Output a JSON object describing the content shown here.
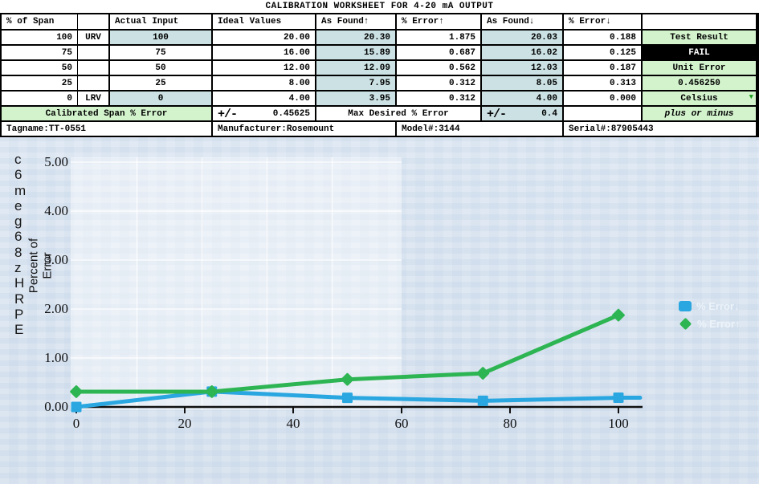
{
  "colors": {
    "band_cyan": "#5ef5ee",
    "cell_teal": "#cbe1e3",
    "cell_green": "#d3f3cd",
    "fail_bg": "#000000",
    "series_blue": "#2aa7e0",
    "series_green": "#2eb553",
    "dropdown_green": "#1f9e1f"
  },
  "worksheet": {
    "title": "CALIBRATION WORKSHEET FOR 4-20 mA OUTPUT",
    "columns": [
      "% of Span",
      "",
      "Actual Input",
      "Ideal Values",
      "As Found↑",
      "% Error↑",
      "As Found↓",
      "% Error↓",
      ""
    ],
    "rows": [
      {
        "span": "100",
        "tag": "URV",
        "input": "100",
        "ideal": "20.00",
        "af_up": "20.30",
        "err_up": "1.875",
        "af_dn": "20.03",
        "err_dn": "0.188",
        "result": "Test Result",
        "result_style": "green"
      },
      {
        "span": "75",
        "tag": "",
        "input": "75",
        "ideal": "16.00",
        "af_up": "15.89",
        "err_up": "0.687",
        "af_dn": "16.02",
        "err_dn": "0.125",
        "result": "FAIL",
        "result_style": "black"
      },
      {
        "span": "50",
        "tag": "",
        "input": "50",
        "ideal": "12.00",
        "af_up": "12.09",
        "err_up": "0.562",
        "af_dn": "12.03",
        "err_dn": "0.187",
        "result": "Unit Error",
        "result_style": "green"
      },
      {
        "span": "25",
        "tag": "",
        "input": "25",
        "ideal": "8.00",
        "af_up": "7.95",
        "err_up": "0.312",
        "af_dn": "8.05",
        "err_dn": "0.313",
        "result": "0.456250",
        "result_style": "green"
      },
      {
        "span": "0",
        "tag": "LRV",
        "input": "0",
        "ideal": "4.00",
        "af_up": "3.95",
        "err_up": "0.312",
        "af_dn": "4.00",
        "err_dn": "0.000",
        "result": "Celsius",
        "result_style": "green-dropdown"
      }
    ],
    "summary": {
      "calibrated_label": "Calibrated Span % Error",
      "calibrated_pm": "+/-",
      "calibrated_value": "0.45625",
      "max_desired_label": "Max Desired % Error",
      "max_pm": "+/-",
      "max_value": "0.4",
      "units_note": "plus or minus"
    },
    "info": {
      "tagname": "Tagname:TT-0551",
      "manufacturer": "Manufacturer:Rosemount",
      "model": "Model#:3144",
      "serial": "Serial#:87905443"
    }
  },
  "chart_data": {
    "type": "line",
    "title": "",
    "xlabel": "",
    "ylabel": "Percent of Error",
    "ylabel_lines": [
      "Percent of",
      "Error"
    ],
    "x": [
      0,
      25,
      50,
      75,
      100
    ],
    "xticks": [
      0,
      20,
      40,
      60,
      80,
      100
    ],
    "yticks": [
      "5.00",
      "4.00",
      "3.00",
      "2.00",
      "1.00",
      "0.00"
    ],
    "xlim": [
      0,
      104
    ],
    "ylim": [
      0,
      5.5
    ],
    "grid": true,
    "legend_position": "right",
    "left_glyphs": [
      "c",
      "6",
      "m",
      "e",
      "g",
      "6",
      "8",
      "z",
      "H",
      "R",
      "P",
      "E"
    ],
    "series": [
      {
        "name": "% Error↓",
        "color": "#2aa7e0",
        "marker": "square",
        "values": [
          0.0,
          0.313,
          0.187,
          0.125,
          0.188
        ],
        "extend_to_x": 104
      },
      {
        "name": "% Error↑",
        "color": "#2eb553",
        "marker": "diamond",
        "values": [
          0.312,
          0.312,
          0.562,
          0.687,
          1.875
        ]
      }
    ]
  }
}
